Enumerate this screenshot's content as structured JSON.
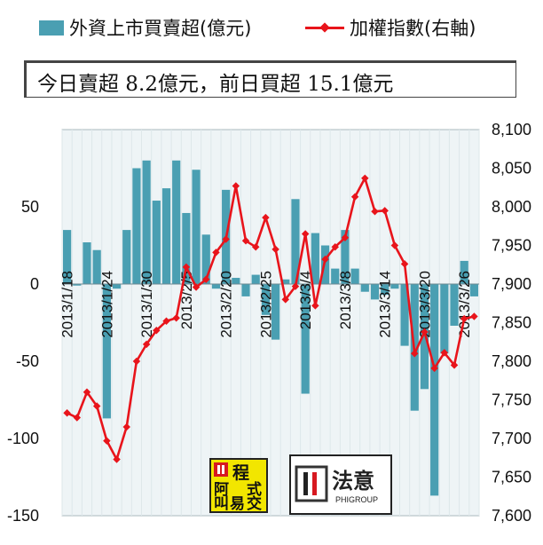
{
  "legend": {
    "bar_label": "外資上市買賣超(億元)",
    "line_label": "加權指數(右軸)"
  },
  "annotation": "今日賣超 8.2億元，前日買超 15.1億元",
  "logos": {
    "left": {
      "c1": "程",
      "c2": "阿",
      "c3": "式",
      "c4": "叫",
      "c5": "交",
      "c6": "易"
    },
    "right": {
      "name": "法意",
      "sub": "PHIGROUP"
    }
  },
  "colors": {
    "bar": "#4a9fb2",
    "line": "#e8141b",
    "grid": "#dde7ea"
  },
  "chart_data": {
    "type": "bar+line",
    "date_labels": [
      "2013/1/18",
      "2013/1/24",
      "2013/1/30",
      "2013/2/5",
      "2013/2/20",
      "2013/2/25",
      "2013/3/4",
      "2013/3/8",
      "2013/3/14",
      "2013/3/20",
      "2013/3/26"
    ],
    "date_label_index": [
      0,
      4,
      8,
      12,
      16,
      20,
      24,
      28,
      32,
      36,
      40
    ],
    "left_axis": {
      "ylim": [
        -150,
        100
      ],
      "ticks": [
        -150,
        -100,
        -50,
        0,
        50
      ]
    },
    "right_axis": {
      "ylim": [
        7600,
        8100
      ],
      "ticks": [
        "7,600",
        "7,650",
        "7,700",
        "7,750",
        "7,800",
        "7,850",
        "7,900",
        "7,950",
        "8,000",
        "8,050",
        "8,100"
      ]
    },
    "series": [
      {
        "name": "外資上市買賣超(億元)",
        "type": "bar",
        "values": [
          35,
          -1,
          27,
          22,
          -87,
          -3,
          35,
          75,
          80,
          54,
          62,
          80,
          46,
          74,
          32,
          -3,
          61,
          4,
          -8,
          6,
          -20,
          -36,
          3,
          55,
          -71,
          33,
          25,
          10,
          35,
          10,
          -5,
          -10,
          -7,
          -3,
          -40,
          -82,
          -68,
          -137,
          -45,
          -27,
          15,
          -8
        ]
      },
      {
        "name": "加權指數(右軸)",
        "type": "line",
        "values": [
          7733,
          7727,
          7760,
          7742,
          7697,
          7673,
          7715,
          7800,
          7822,
          7840,
          7852,
          7856,
          7922,
          7896,
          7906,
          7941,
          7958,
          8027,
          7956,
          7948,
          7986,
          7945,
          7880,
          7897,
          7965,
          7872,
          7932,
          7948,
          7960,
          8013,
          8037,
          7994,
          7995,
          7950,
          7926,
          7810,
          7838,
          7791,
          7811,
          7795,
          7855,
          7858
        ]
      }
    ]
  }
}
